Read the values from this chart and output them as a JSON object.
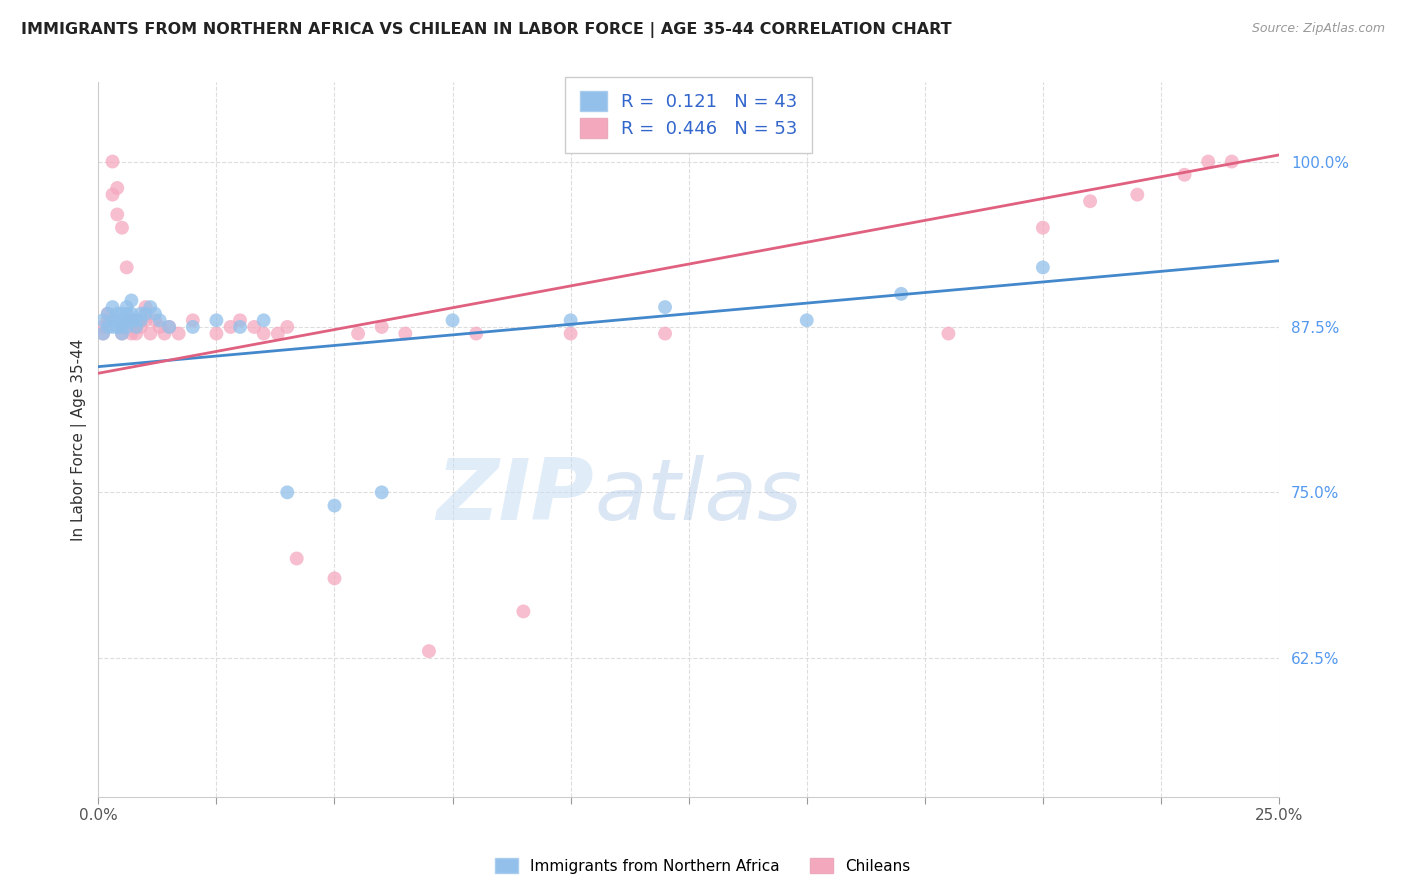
{
  "title": "IMMIGRANTS FROM NORTHERN AFRICA VS CHILEAN IN LABOR FORCE | AGE 35-44 CORRELATION CHART",
  "source": "Source: ZipAtlas.com",
  "ylabel": "In Labor Force | Age 35-44",
  "xlim": [
    0.0,
    0.25
  ],
  "ylim": [
    0.52,
    1.06
  ],
  "xticks": [
    0.0,
    0.025,
    0.05,
    0.075,
    0.1,
    0.125,
    0.15,
    0.175,
    0.2,
    0.225,
    0.25
  ],
  "xticklabels": [
    "0.0%",
    "",
    "",
    "",
    "",
    "",
    "",
    "",
    "",
    "",
    "25.0%"
  ],
  "yticks_right": [
    0.625,
    0.75,
    0.875,
    1.0
  ],
  "ytick_labels_right": [
    "62.5%",
    "75.0%",
    "87.5%",
    "100.0%"
  ],
  "blue_R": 0.121,
  "blue_N": 43,
  "pink_R": 0.446,
  "pink_N": 53,
  "blue_color": "#92C0EA",
  "pink_color": "#F4A8BE",
  "blue_line_color": "#4488CC",
  "pink_line_color": "#E06080",
  "watermark_zip": "ZIP",
  "watermark_atlas": "atlas",
  "legend_label_blue": "Immigrants from Northern Africa",
  "legend_label_pink": "Chileans",
  "blue_x": [
    0.001,
    0.001,
    0.002,
    0.002,
    0.003,
    0.003,
    0.003,
    0.004,
    0.004,
    0.004,
    0.005,
    0.005,
    0.005,
    0.005,
    0.006,
    0.006,
    0.006,
    0.006,
    0.007,
    0.007,
    0.007,
    0.008,
    0.008,
    0.009,
    0.009,
    0.01,
    0.011,
    0.012,
    0.013,
    0.015,
    0.02,
    0.025,
    0.03,
    0.035,
    0.04,
    0.05,
    0.06,
    0.075,
    0.1,
    0.12,
    0.15,
    0.17,
    0.2
  ],
  "blue_y": [
    0.87,
    0.88,
    0.875,
    0.885,
    0.875,
    0.88,
    0.89,
    0.875,
    0.88,
    0.885,
    0.87,
    0.875,
    0.88,
    0.885,
    0.875,
    0.88,
    0.885,
    0.89,
    0.88,
    0.885,
    0.895,
    0.875,
    0.88,
    0.88,
    0.885,
    0.885,
    0.89,
    0.885,
    0.88,
    0.875,
    0.875,
    0.88,
    0.875,
    0.88,
    0.75,
    0.74,
    0.75,
    0.88,
    0.88,
    0.89,
    0.88,
    0.9,
    0.92
  ],
  "pink_x": [
    0.001,
    0.001,
    0.002,
    0.002,
    0.003,
    0.003,
    0.004,
    0.004,
    0.005,
    0.005,
    0.005,
    0.006,
    0.006,
    0.007,
    0.007,
    0.008,
    0.008,
    0.008,
    0.009,
    0.009,
    0.01,
    0.01,
    0.011,
    0.012,
    0.013,
    0.014,
    0.015,
    0.017,
    0.02,
    0.025,
    0.028,
    0.03,
    0.033,
    0.035,
    0.038,
    0.04,
    0.042,
    0.05,
    0.055,
    0.06,
    0.065,
    0.07,
    0.08,
    0.09,
    0.1,
    0.12,
    0.18,
    0.2,
    0.21,
    0.22,
    0.23,
    0.235,
    0.24
  ],
  "pink_y": [
    0.875,
    0.87,
    0.885,
    0.88,
    1.0,
    0.975,
    0.98,
    0.96,
    0.95,
    0.87,
    0.875,
    0.88,
    0.92,
    0.88,
    0.87,
    0.875,
    0.88,
    0.87,
    0.88,
    0.875,
    0.89,
    0.88,
    0.87,
    0.88,
    0.875,
    0.87,
    0.875,
    0.87,
    0.88,
    0.87,
    0.875,
    0.88,
    0.875,
    0.87,
    0.87,
    0.875,
    0.7,
    0.685,
    0.87,
    0.875,
    0.87,
    0.63,
    0.87,
    0.66,
    0.87,
    0.87,
    0.87,
    0.95,
    0.97,
    0.975,
    0.99,
    1.0,
    1.0
  ]
}
